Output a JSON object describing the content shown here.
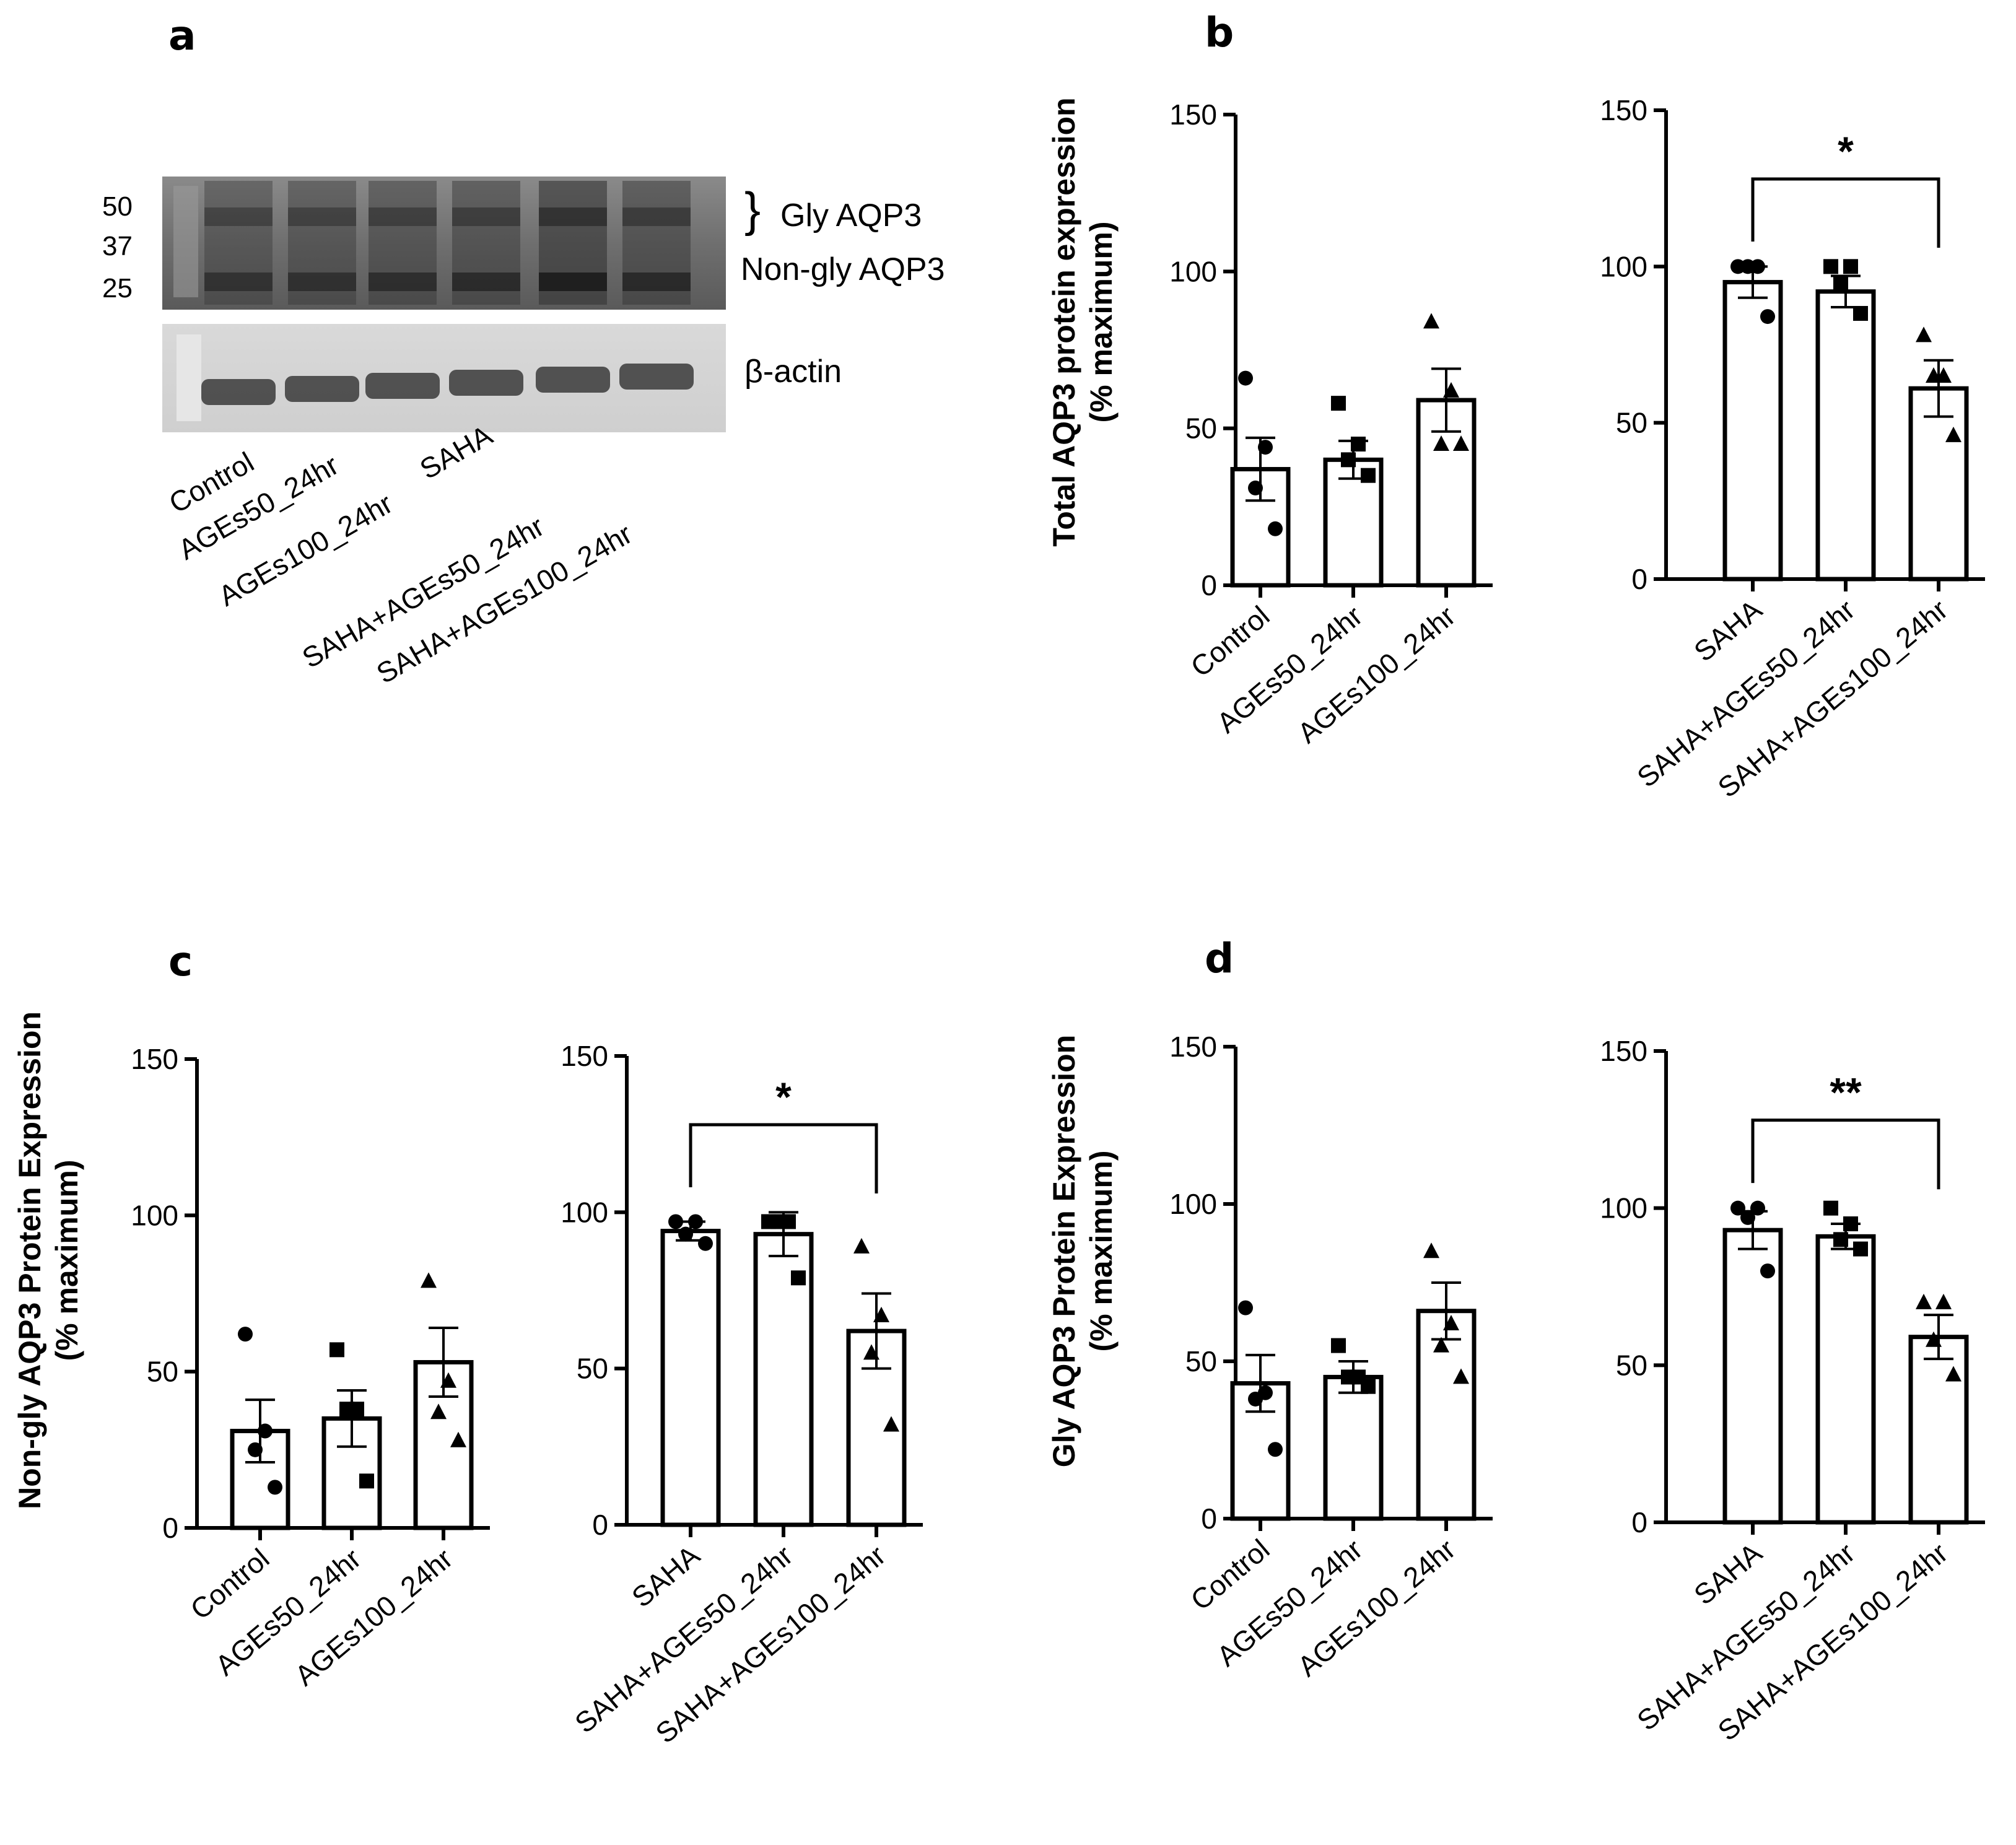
{
  "panel_a": {
    "letter": "a",
    "markers": [
      "50",
      "37",
      "25"
    ],
    "band_labels": [
      "Gly AQP3",
      "Non-gly AQP3",
      "β-actin"
    ],
    "bracket_glyph": "}",
    "lanes": [
      "Control",
      "AGEs50_24hr",
      "AGEs100_24hr",
      "SAHA",
      "SAHA+AGEs50_24hr",
      "SAHA+AGEs100_24hr"
    ]
  },
  "panel_letters": {
    "b": "b",
    "c": "c",
    "d": "d"
  },
  "ylabels": {
    "b": [
      "Total AQP3 protein expression",
      "(% maximum)"
    ],
    "c": [
      "Non-gly AQP3 Protein Expression",
      "(% maximum)"
    ],
    "d": [
      "Gly AQP3 Protein Expression",
      "(% maximum)"
    ]
  },
  "chart_data": [
    {
      "panel": "b",
      "type": "bar",
      "ylim": [
        0,
        150
      ],
      "yticks": [
        0,
        50,
        100,
        150
      ],
      "categories": [
        "Control",
        "AGEs50_24hr",
        "AGEs100_24hr"
      ],
      "values": [
        37,
        40,
        59
      ],
      "sem": [
        10,
        6,
        10
      ],
      "points": [
        [
          66,
          44,
          31,
          18
        ],
        [
          58,
          45,
          40,
          35
        ],
        [
          84,
          62,
          45,
          45
        ]
      ],
      "markers": [
        "circle",
        "square",
        "triangle"
      ],
      "significance": null
    },
    {
      "panel": "b",
      "type": "bar",
      "ylim": [
        0,
        150
      ],
      "yticks": [
        0,
        50,
        100,
        150
      ],
      "categories": [
        "SAHA",
        "SAHA+AGEs50_24hr",
        "SAHA+AGEs100_24hr"
      ],
      "values": [
        95,
        92,
        61
      ],
      "sem": [
        5,
        5,
        9
      ],
      "points": [
        [
          100,
          100,
          100,
          84
        ],
        [
          100,
          100,
          95,
          85
        ],
        [
          78,
          65,
          65,
          46
        ]
      ],
      "markers": [
        "circle",
        "square",
        "triangle"
      ],
      "significance": {
        "from": 0,
        "to": 2,
        "label": "*"
      }
    },
    {
      "panel": "c",
      "type": "bar",
      "ylim": [
        0,
        150
      ],
      "yticks": [
        0,
        50,
        100,
        150
      ],
      "categories": [
        "Control",
        "AGEs50_24hr",
        "AGEs100_24hr"
      ],
      "values": [
        31,
        35,
        53
      ],
      "sem": [
        10,
        9,
        11
      ],
      "points": [
        [
          62,
          31,
          25,
          13
        ],
        [
          57,
          38,
          38,
          15
        ],
        [
          79,
          47,
          37,
          28
        ]
      ],
      "markers": [
        "circle",
        "square",
        "triangle"
      ],
      "significance": null
    },
    {
      "panel": "c",
      "type": "bar",
      "ylim": [
        0,
        150
      ],
      "yticks": [
        0,
        50,
        100,
        150
      ],
      "categories": [
        "SAHA",
        "SAHA+AGEs50_24hr",
        "SAHA+AGEs100_24hr"
      ],
      "values": [
        94,
        93,
        62
      ],
      "sem": [
        3,
        7,
        12
      ],
      "points": [
        [
          97,
          97,
          93,
          90
        ],
        [
          97,
          97,
          97,
          79
        ],
        [
          89,
          67,
          55,
          32
        ]
      ],
      "markers": [
        "circle",
        "square",
        "triangle"
      ],
      "significance": {
        "from": 0,
        "to": 2,
        "label": "*"
      }
    },
    {
      "panel": "d",
      "type": "bar",
      "ylim": [
        0,
        150
      ],
      "yticks": [
        0,
        50,
        100,
        150
      ],
      "categories": [
        "Control",
        "AGEs50_24hr",
        "AGEs100_24hr"
      ],
      "values": [
        43,
        45,
        66
      ],
      "sem": [
        9,
        5,
        9
      ],
      "points": [
        [
          67,
          40,
          38,
          22
        ],
        [
          55,
          45,
          45,
          42
        ],
        [
          85,
          62,
          55,
          45
        ]
      ],
      "markers": [
        "circle",
        "square",
        "triangle"
      ],
      "significance": null
    },
    {
      "panel": "d",
      "type": "bar",
      "ylim": [
        0,
        150
      ],
      "yticks": [
        0,
        50,
        100,
        150
      ],
      "categories": [
        "SAHA",
        "SAHA+AGEs50_24hr",
        "SAHA+AGEs100_24hr"
      ],
      "values": [
        93,
        91,
        59
      ],
      "sem": [
        6,
        4,
        7
      ],
      "points": [
        [
          100,
          100,
          97,
          80
        ],
        [
          100,
          95,
          90,
          87
        ],
        [
          70,
          70,
          58,
          47
        ]
      ],
      "markers": [
        "circle",
        "square",
        "triangle"
      ],
      "significance": {
        "from": 0,
        "to": 2,
        "label": "**"
      }
    }
  ]
}
